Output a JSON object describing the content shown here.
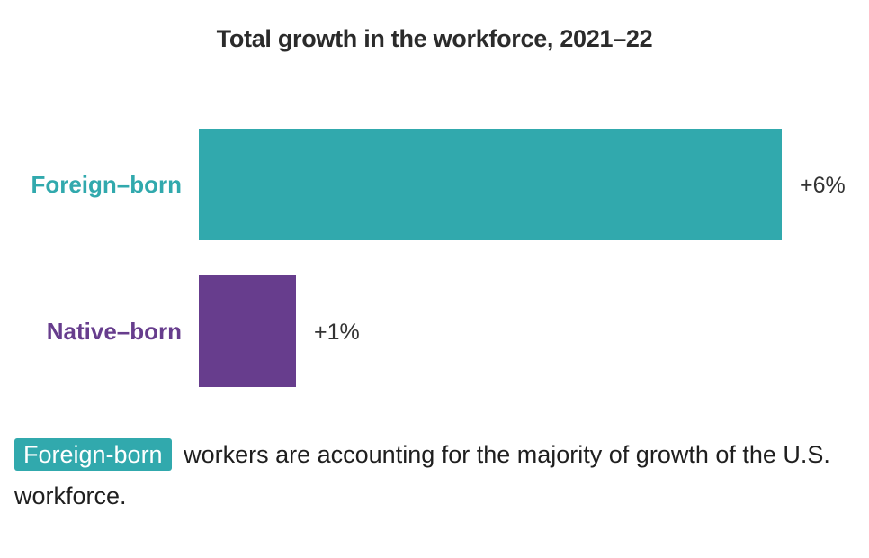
{
  "chart_data": {
    "type": "bar",
    "orientation": "horizontal",
    "title": "Total growth in the workforce, 2021–22",
    "categories": [
      "Foreign–born",
      "Native–born"
    ],
    "values": [
      6,
      1
    ],
    "value_labels": [
      "+6%",
      "+1%"
    ],
    "colors": [
      "#31a9ad",
      "#673d8d"
    ],
    "xlim": [
      0,
      6
    ],
    "xlabel": "",
    "ylabel": "",
    "grid": false
  },
  "caption": {
    "highlight": "Foreign-born",
    "highlight_color": "#31a9ad",
    "text": "workers are accounting for the majority of growth of the U.S. workforce."
  }
}
